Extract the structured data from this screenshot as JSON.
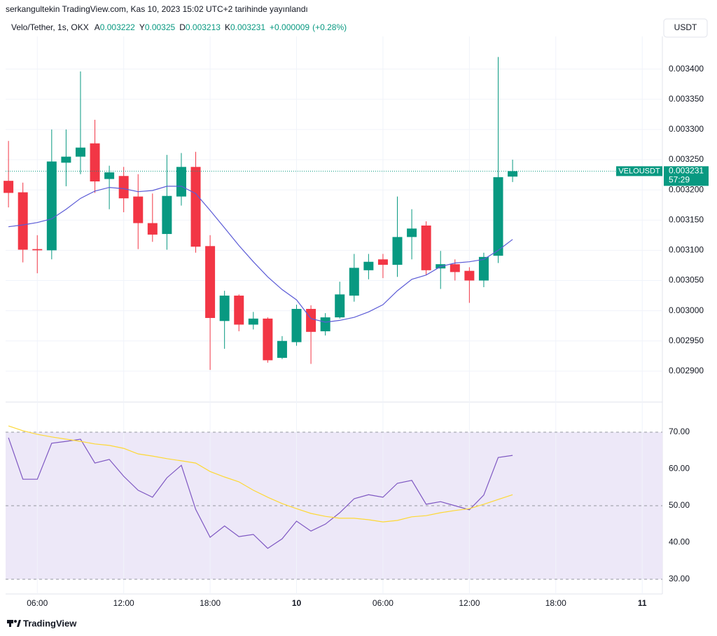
{
  "header": {
    "published": "serkangultekin TradingView.com, Kas 10, 2023 15:02 UTC+2 tarihinde yayınlandı",
    "currency": "USDT"
  },
  "legend": {
    "symbol": "Velo/Tether, 1s, OKX",
    "items": [
      {
        "label": "A",
        "value": 0.003222
      },
      {
        "label": "Y",
        "value": 0.00325
      },
      {
        "label": "D",
        "value": 0.003213
      },
      {
        "label": "K",
        "value": 0.003231
      }
    ],
    "change": {
      "value": 9e-06,
      "label": "+0.000009"
    },
    "change_pct": {
      "value": 0.28,
      "label": "(+0.28%)"
    }
  },
  "footer": {
    "brand": "TradingView"
  },
  "chart_data": [
    {
      "type": "candlestick",
      "x": [
        4,
        5,
        6,
        7,
        8,
        9,
        10,
        11,
        12,
        13,
        14,
        15,
        16,
        17,
        18,
        19,
        20,
        21,
        22,
        23,
        24,
        25,
        26,
        27,
        28,
        29,
        30,
        31,
        32,
        33,
        34,
        35,
        36,
        37,
        38,
        39
      ],
      "open": [
        0.003215,
        0.003196,
        0.003102,
        0.0031,
        0.003245,
        0.003255,
        0.003277,
        0.003218,
        0.003223,
        0.003189,
        0.003145,
        0.003127,
        0.003189,
        0.003238,
        0.003107,
        0.002983,
        0.003025,
        0.002977,
        0.002987,
        0.002922,
        0.002948,
        0.003003,
        0.002966,
        0.002989,
        0.003025,
        0.003067,
        0.003085,
        0.003076,
        0.003122,
        0.003141,
        0.00307,
        0.003077,
        0.003066,
        0.00305,
        0.003091,
        0.003222
      ],
      "high": [
        0.003281,
        0.003212,
        0.003125,
        0.0033,
        0.0033,
        0.003396,
        0.003316,
        0.00324,
        0.003238,
        0.003226,
        0.003194,
        0.003258,
        0.003261,
        0.003263,
        0.003125,
        0.003033,
        0.003027,
        0.002998,
        0.002989,
        0.002958,
        0.00301,
        0.003009,
        0.002996,
        0.003048,
        0.003094,
        0.003094,
        0.003094,
        0.003189,
        0.003168,
        0.003148,
        0.003099,
        0.003085,
        0.003072,
        0.003096,
        0.00342,
        0.00325
      ],
      "low": [
        0.003171,
        0.00308,
        0.003062,
        0.003085,
        0.003206,
        0.003226,
        0.003195,
        0.003168,
        0.003163,
        0.003102,
        0.003114,
        0.003101,
        0.003174,
        0.003096,
        0.002902,
        0.002937,
        0.002966,
        0.002969,
        0.002914,
        0.00292,
        0.002942,
        0.002912,
        0.002959,
        0.002987,
        0.003015,
        0.003052,
        0.003054,
        0.003056,
        0.003085,
        0.003059,
        0.003036,
        0.00305,
        0.003013,
        0.003039,
        0.003079,
        0.003213
      ],
      "close": [
        0.003195,
        0.003101,
        0.0031,
        0.003247,
        0.003255,
        0.00327,
        0.003214,
        0.003229,
        0.003186,
        0.003145,
        0.003126,
        0.00319,
        0.003238,
        0.003106,
        0.002988,
        0.003025,
        0.002977,
        0.002987,
        0.002918,
        0.00295,
        0.003003,
        0.002965,
        0.002989,
        0.003027,
        0.003071,
        0.003081,
        0.003076,
        0.003122,
        0.003136,
        0.003067,
        0.003077,
        0.003064,
        0.00305,
        0.003089,
        0.003221,
        0.003231
      ],
      "up_color": "#089981",
      "down_color": "#f23645",
      "overlays": [
        {
          "type": "line",
          "color": "#5b5bd6",
          "values": [
            0.003139,
            0.003142,
            0.003146,
            0.003152,
            0.003168,
            0.003186,
            0.003198,
            0.003204,
            0.003202,
            0.003197,
            0.003199,
            0.003206,
            0.003206,
            0.003194,
            0.003166,
            0.003137,
            0.003108,
            0.003081,
            0.003056,
            0.003035,
            0.003018,
            0.002987,
            0.002981,
            0.002984,
            0.002989,
            0.002998,
            0.00301,
            0.003033,
            0.003052,
            0.003059,
            0.003073,
            0.003079,
            0.003081,
            0.003085,
            0.0031,
            0.003118
          ]
        }
      ],
      "ylim": [
        0.00285,
        0.003454
      ],
      "yticks": [
        {
          "value": 0.0029,
          "label": "0.002900"
        },
        {
          "value": 0.00295,
          "label": "0.002950"
        },
        {
          "value": 0.003,
          "label": "0.003000"
        },
        {
          "value": 0.00305,
          "label": "0.003050"
        },
        {
          "value": 0.0031,
          "label": "0.003100"
        },
        {
          "value": 0.00315,
          "label": "0.003150"
        },
        {
          "value": 0.0032,
          "label": "0.003200"
        },
        {
          "value": 0.00325,
          "label": "0.003250"
        },
        {
          "value": 0.0033,
          "label": "0.003300"
        },
        {
          "value": 0.00335,
          "label": "0.003350"
        },
        {
          "value": 0.0034,
          "label": "0.003400"
        }
      ],
      "xlim": [
        3.8,
        49.4
      ],
      "xticks": [
        {
          "value": 6,
          "label": "06:00"
        },
        {
          "value": 12,
          "label": "12:00"
        },
        {
          "value": 18,
          "label": "18:00"
        },
        {
          "value": 24,
          "label": "10"
        },
        {
          "value": 30,
          "label": "06:00"
        },
        {
          "value": 36,
          "label": "12:00"
        },
        {
          "value": 42,
          "label": "18:00"
        },
        {
          "value": 48,
          "label": "11"
        }
      ],
      "grid": true,
      "last_price": {
        "name": "VELOUSDT",
        "value": 0.003231,
        "countdown": "57:29",
        "color": "#089981"
      }
    },
    {
      "type": "line",
      "x": [
        4,
        5,
        6,
        7,
        8,
        9,
        10,
        11,
        12,
        13,
        14,
        15,
        16,
        17,
        18,
        19,
        20,
        21,
        22,
        23,
        24,
        25,
        26,
        27,
        28,
        29,
        30,
        31,
        32,
        33,
        34,
        35,
        36,
        37,
        38,
        39
      ],
      "series": [
        {
          "color": "#7e57c2",
          "values": [
            68.5,
            57.2,
            57.2,
            67.0,
            67.5,
            68.1,
            61.6,
            62.6,
            58.0,
            54.2,
            52.3,
            57.6,
            61.0,
            49.0,
            41.4,
            44.5,
            41.6,
            42.2,
            38.4,
            41.0,
            45.8,
            43.1,
            45.0,
            48.1,
            51.9,
            53.0,
            52.3,
            56.1,
            56.9,
            50.4,
            51.1,
            50.0,
            48.9,
            52.9,
            63.1,
            63.7
          ]
        },
        {
          "color": "#fdd835",
          "values": [
            71.7,
            70.4,
            69.4,
            68.7,
            68.1,
            67.5,
            66.8,
            66.4,
            65.6,
            64.1,
            63.5,
            62.8,
            62.2,
            61.6,
            59.3,
            57.8,
            56.5,
            54.2,
            52.3,
            50.6,
            49.2,
            47.9,
            47.1,
            46.6,
            46.6,
            46.2,
            45.6,
            46.0,
            47.0,
            47.3,
            48.1,
            48.7,
            49.2,
            50.4,
            51.7,
            53.0
          ]
        }
      ],
      "ylim": [
        26,
        78
      ],
      "yticks": [
        {
          "value": 30,
          "label": "30.00"
        },
        {
          "value": 40,
          "label": "40.00"
        },
        {
          "value": 50,
          "label": "50.00"
        },
        {
          "value": 60,
          "label": "60.00"
        },
        {
          "value": 70,
          "label": "70.00"
        }
      ],
      "band": [
        30,
        70
      ],
      "band_color": "#ede8f8",
      "dashed_levels": [
        30,
        50,
        70
      ]
    }
  ]
}
